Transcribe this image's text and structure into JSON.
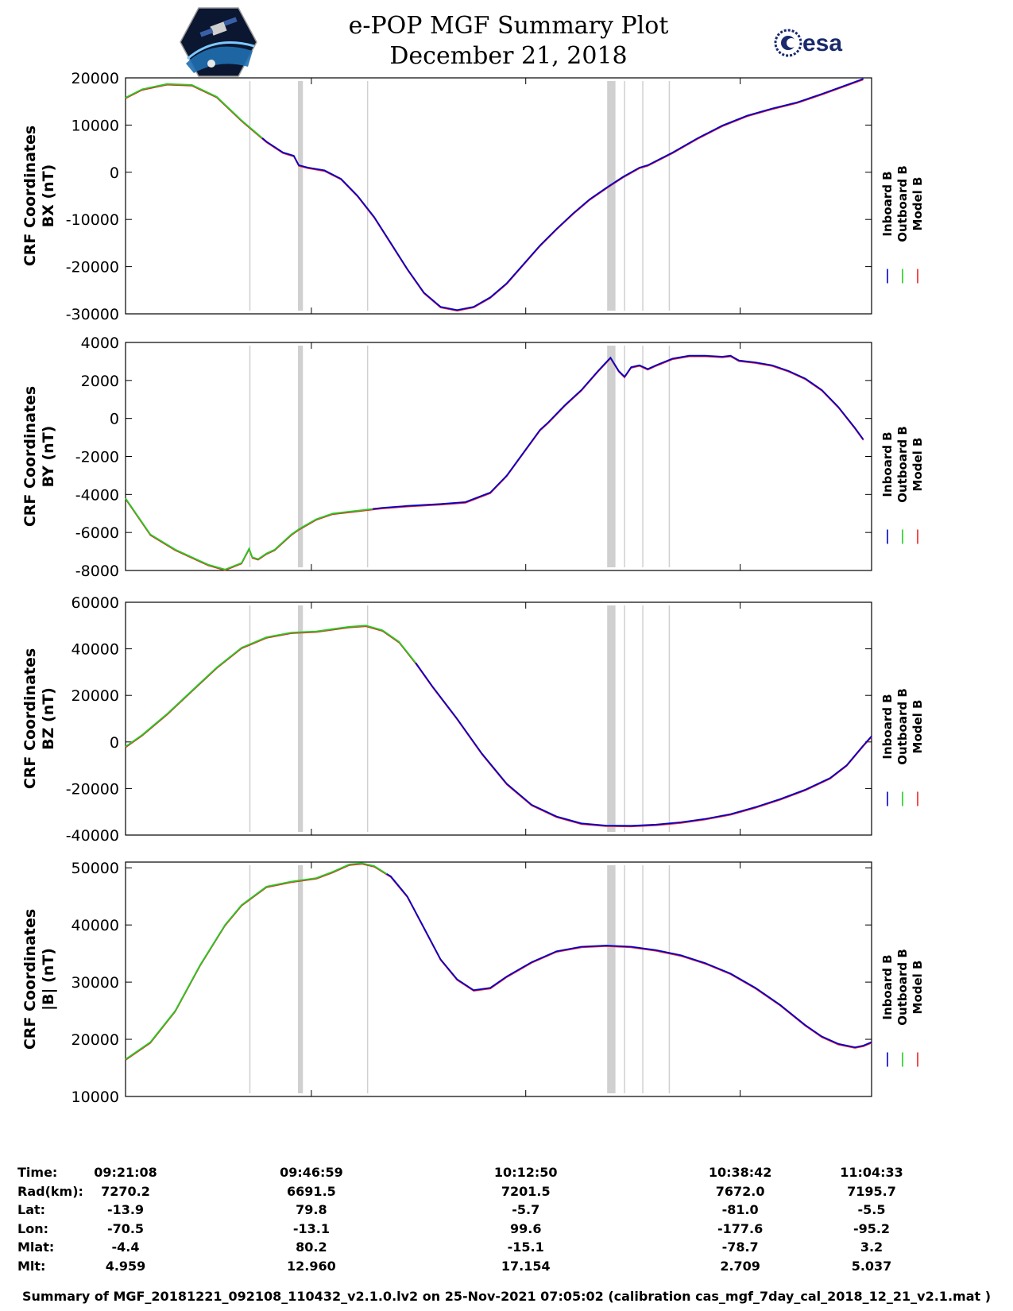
{
  "header": {
    "title_line1": "e-POP MGF Summary Plot",
    "title_line2": "December 21, 2018",
    "right_logo_text": "esa"
  },
  "colors": {
    "inboard": "#0000cc",
    "outboard": "#22cc22",
    "model": "#ee2222",
    "gap_band": "#d0d0d0"
  },
  "chart_data": [
    {
      "type": "line",
      "ylabel_line1": "CRF Coordinates",
      "ylabel_line2": "BX (nT)",
      "ylim": [
        -30000,
        20000
      ],
      "yticks": [
        "20000",
        "10000",
        "0",
        "-10000",
        "-20000",
        "-30000"
      ],
      "ytick_values": [
        20000,
        10000,
        0,
        -10000,
        -20000,
        -30000
      ],
      "legend": [
        "Inboard B",
        "Outboard B",
        "Model B"
      ],
      "green_end_minute": 16.5,
      "series_points": [
        [
          0,
          15800
        ],
        [
          2,
          17600
        ],
        [
          5,
          18700
        ],
        [
          8,
          18500
        ],
        [
          11,
          16000
        ],
        [
          14,
          11000
        ],
        [
          17,
          6500
        ],
        [
          19,
          4200
        ],
        [
          20.3,
          3500
        ],
        [
          20.9,
          1500
        ],
        [
          22,
          1000
        ],
        [
          24,
          400
        ],
        [
          26,
          -1400
        ],
        [
          28,
          -5000
        ],
        [
          30,
          -9500
        ],
        [
          32,
          -15000
        ],
        [
          34,
          -20500
        ],
        [
          36,
          -25500
        ],
        [
          38,
          -28500
        ],
        [
          40,
          -29200
        ],
        [
          42,
          -28500
        ],
        [
          44,
          -26500
        ],
        [
          46,
          -23500
        ],
        [
          48,
          -19500
        ],
        [
          50,
          -15500
        ],
        [
          52,
          -12000
        ],
        [
          54,
          -8700
        ],
        [
          56,
          -5700
        ],
        [
          58,
          -3300
        ],
        [
          60,
          -1000
        ],
        [
          62,
          1000
        ],
        [
          63,
          1500
        ],
        [
          66,
          4200
        ],
        [
          69,
          7200
        ],
        [
          72,
          9900
        ],
        [
          75,
          12000
        ],
        [
          78,
          13500
        ],
        [
          81,
          14800
        ],
        [
          84,
          16600
        ],
        [
          87,
          18500
        ],
        [
          89,
          19800
        ]
      ]
    },
    {
      "type": "line",
      "ylabel_line1": "CRF Coordinates",
      "ylabel_line2": "BY (nT)",
      "ylim": [
        -8000,
        4000
      ],
      "yticks": [
        "4000",
        "2000",
        "0",
        "-2000",
        "-4000",
        "-6000",
        "-8000"
      ],
      "ytick_values": [
        4000,
        2000,
        0,
        -2000,
        -4000,
        -6000,
        -8000
      ],
      "legend": [
        "Inboard B",
        "Outboard B",
        "Model B"
      ],
      "green_end_minute": 29.8,
      "series_points": [
        [
          0,
          -4200
        ],
        [
          3,
          -6100
        ],
        [
          6,
          -6900
        ],
        [
          8,
          -7300
        ],
        [
          10,
          -7700
        ],
        [
          12,
          -7950
        ],
        [
          14,
          -7600
        ],
        [
          14.9,
          -6850
        ],
        [
          15.3,
          -7300
        ],
        [
          16,
          -7400
        ],
        [
          17,
          -7100
        ],
        [
          18,
          -6900
        ],
        [
          19,
          -6500
        ],
        [
          20,
          -6100
        ],
        [
          21,
          -5800
        ],
        [
          23,
          -5300
        ],
        [
          25,
          -5000
        ],
        [
          27,
          -4900
        ],
        [
          29,
          -4800
        ],
        [
          31,
          -4700
        ],
        [
          34,
          -4600
        ],
        [
          38,
          -4500
        ],
        [
          41,
          -4400
        ],
        [
          44,
          -3900
        ],
        [
          46,
          -3000
        ],
        [
          48,
          -1800
        ],
        [
          50,
          -600
        ],
        [
          51,
          -200
        ],
        [
          53,
          700
        ],
        [
          55,
          1500
        ],
        [
          57,
          2500
        ],
        [
          58.5,
          3200
        ],
        [
          59.5,
          2500
        ],
        [
          60.2,
          2200
        ],
        [
          61,
          2700
        ],
        [
          62,
          2800
        ],
        [
          63,
          2600
        ],
        [
          64,
          2800
        ],
        [
          66,
          3150
        ],
        [
          68,
          3300
        ],
        [
          70,
          3300
        ],
        [
          72,
          3250
        ],
        [
          73,
          3300
        ],
        [
          74,
          3050
        ],
        [
          76,
          2950
        ],
        [
          78,
          2800
        ],
        [
          80,
          2500
        ],
        [
          82,
          2100
        ],
        [
          84,
          1500
        ],
        [
          86,
          600
        ],
        [
          88,
          -500
        ],
        [
          89,
          -1100
        ]
      ]
    },
    {
      "type": "line",
      "ylabel_line1": "CRF Coordinates",
      "ylabel_line2": "BZ (nT)",
      "ylim": [
        -40000,
        60000
      ],
      "yticks": [
        "60000",
        "40000",
        "20000",
        "0",
        "-20000",
        "-40000"
      ],
      "ytick_values": [
        60000,
        40000,
        20000,
        0,
        -20000,
        -40000
      ],
      "legend": [
        "Inboard B",
        "Outboard B",
        "Model B"
      ],
      "green_end_minute": 35,
      "series_points": [
        [
          0,
          -2000
        ],
        [
          2,
          3000
        ],
        [
          5,
          12000
        ],
        [
          8,
          22000
        ],
        [
          11,
          32000
        ],
        [
          14,
          40500
        ],
        [
          17,
          45000
        ],
        [
          20,
          47000
        ],
        [
          23,
          47500
        ],
        [
          25,
          48500
        ],
        [
          27,
          49500
        ],
        [
          29,
          50000
        ],
        [
          31,
          48000
        ],
        [
          33,
          43000
        ],
        [
          35,
          34000
        ],
        [
          37,
          24000
        ],
        [
          40,
          10000
        ],
        [
          43,
          -5000
        ],
        [
          46,
          -18000
        ],
        [
          49,
          -27000
        ],
        [
          52,
          -32000
        ],
        [
          55,
          -35000
        ],
        [
          58,
          -35900
        ],
        [
          61,
          -36000
        ],
        [
          64,
          -35500
        ],
        [
          67,
          -34500
        ],
        [
          70,
          -33000
        ],
        [
          73,
          -31000
        ],
        [
          76,
          -28000
        ],
        [
          79,
          -24500
        ],
        [
          82,
          -20500
        ],
        [
          85,
          -15500
        ],
        [
          87,
          -10000
        ],
        [
          89,
          -1500
        ],
        [
          90,
          2500
        ]
      ]
    },
    {
      "type": "line",
      "ylabel_line1": "CRF Coordinates",
      "ylabel_line2": "|B| (nT)",
      "ylim": [
        10000,
        51000
      ],
      "yticks": [
        "50000",
        "40000",
        "30000",
        "20000",
        "10000"
      ],
      "ytick_values": [
        50000,
        40000,
        30000,
        20000,
        10000
      ],
      "legend": [
        "Inboard B",
        "Outboard B",
        "Model B"
      ],
      "green_end_minute": 31.5,
      "series_points": [
        [
          0,
          16500
        ],
        [
          3,
          19500
        ],
        [
          6,
          25000
        ],
        [
          9,
          33000
        ],
        [
          12,
          40000
        ],
        [
          14,
          43500
        ],
        [
          17,
          46700
        ],
        [
          20,
          47600
        ],
        [
          23,
          48200
        ],
        [
          25,
          49300
        ],
        [
          27,
          50600
        ],
        [
          28.5,
          50800
        ],
        [
          30,
          50300
        ],
        [
          32,
          48500
        ],
        [
          34,
          45000
        ],
        [
          36,
          39500
        ],
        [
          38,
          34000
        ],
        [
          40,
          30500
        ],
        [
          42,
          28600
        ],
        [
          44,
          29000
        ],
        [
          46,
          31000
        ],
        [
          49,
          33500
        ],
        [
          52,
          35400
        ],
        [
          55,
          36200
        ],
        [
          58,
          36400
        ],
        [
          61,
          36200
        ],
        [
          64,
          35600
        ],
        [
          67,
          34700
        ],
        [
          70,
          33300
        ],
        [
          73,
          31500
        ],
        [
          76,
          29000
        ],
        [
          79,
          26000
        ],
        [
          82,
          22500
        ],
        [
          84,
          20500
        ],
        [
          86,
          19200
        ],
        [
          88,
          18600
        ],
        [
          89,
          18900
        ],
        [
          90,
          19500
        ]
      ]
    }
  ],
  "x_axis": {
    "start_minute": 0,
    "end_minute": 90,
    "tick_minutes": [
      22.42,
      48.28,
      74.15
    ],
    "gap_lines_minutes": [
      15,
      29.2,
      58.5,
      60.2,
      62.4,
      65.6
    ],
    "gap_bands_minutes": [
      [
        20.8,
        21.4
      ],
      [
        58.1,
        59.1
      ]
    ]
  },
  "info_table": {
    "labels": [
      "Time:",
      "Rad(km):",
      "Lat:",
      "Lon:",
      "Mlat:",
      "Mlt:"
    ],
    "columns": [
      [
        "09:21:08",
        "7270.2",
        "-13.9",
        "-70.5",
        "-4.4",
        "4.959"
      ],
      [
        "09:46:59",
        "6691.5",
        "79.8",
        "-13.1",
        "80.2",
        "12.960"
      ],
      [
        "10:12:50",
        "7201.5",
        "-5.7",
        "99.6",
        "-15.1",
        "17.154"
      ],
      [
        "10:38:42",
        "7672.0",
        "-81.0",
        "-177.6",
        "-78.7",
        "2.709"
      ],
      [
        "11:04:33",
        "7195.7",
        "-5.5",
        "-95.2",
        "3.2",
        "5.037"
      ]
    ]
  },
  "footer": "Summary of MGF_20181221_092108_110432_v2.1.0.lv2 on 25-Nov-2021 07:05:02 (calibration cas_mgf_7day_cal_2018_12_21_v2.1.mat )"
}
